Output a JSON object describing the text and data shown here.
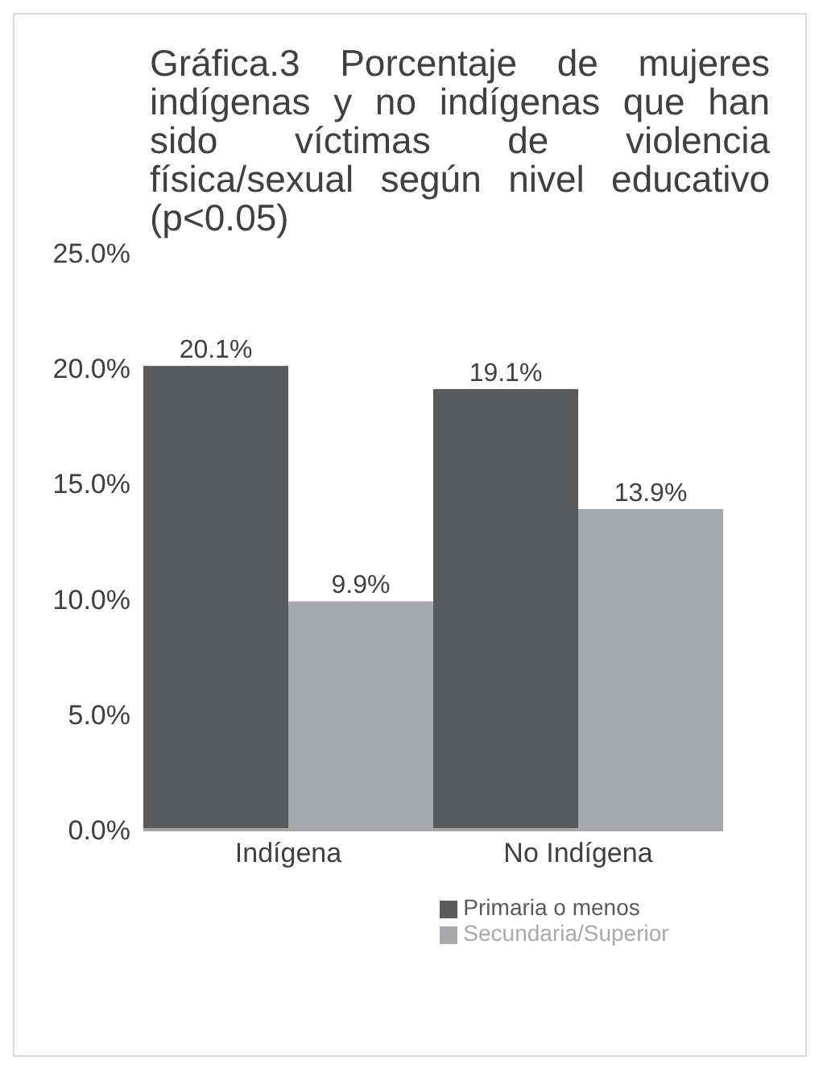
{
  "chart_data": {
    "type": "bar",
    "title": "Gráfica.3 Porcentaje de mujeres indígenas y no indígenas que han sido víctimas de violencia física/sexual según nivel educativo (p<0.05)",
    "categories": [
      "Indígena",
      "No Indígena"
    ],
    "series": [
      {
        "name": "Primaria o menos",
        "color": "#595a5c",
        "values": [
          20.1,
          19.1
        ],
        "value_labels": [
          "20.1%",
          "19.1%"
        ]
      },
      {
        "name": "Secundaria/Superior",
        "color": "#a7a9ac",
        "values": [
          9.9,
          13.9
        ],
        "value_labels": [
          "9.9%",
          "13.9%"
        ]
      }
    ],
    "ylim": [
      0,
      25
    ],
    "yticks": [
      {
        "value": 0,
        "label": "0.0%"
      },
      {
        "value": 5,
        "label": "5.0%"
      },
      {
        "value": 10,
        "label": "10.0%"
      },
      {
        "value": 15,
        "label": "15.0%"
      },
      {
        "value": 20,
        "label": "20.0%"
      },
      {
        "value": 25,
        "label": "25.0%"
      }
    ],
    "grid": false,
    "legend": "bottom"
  }
}
